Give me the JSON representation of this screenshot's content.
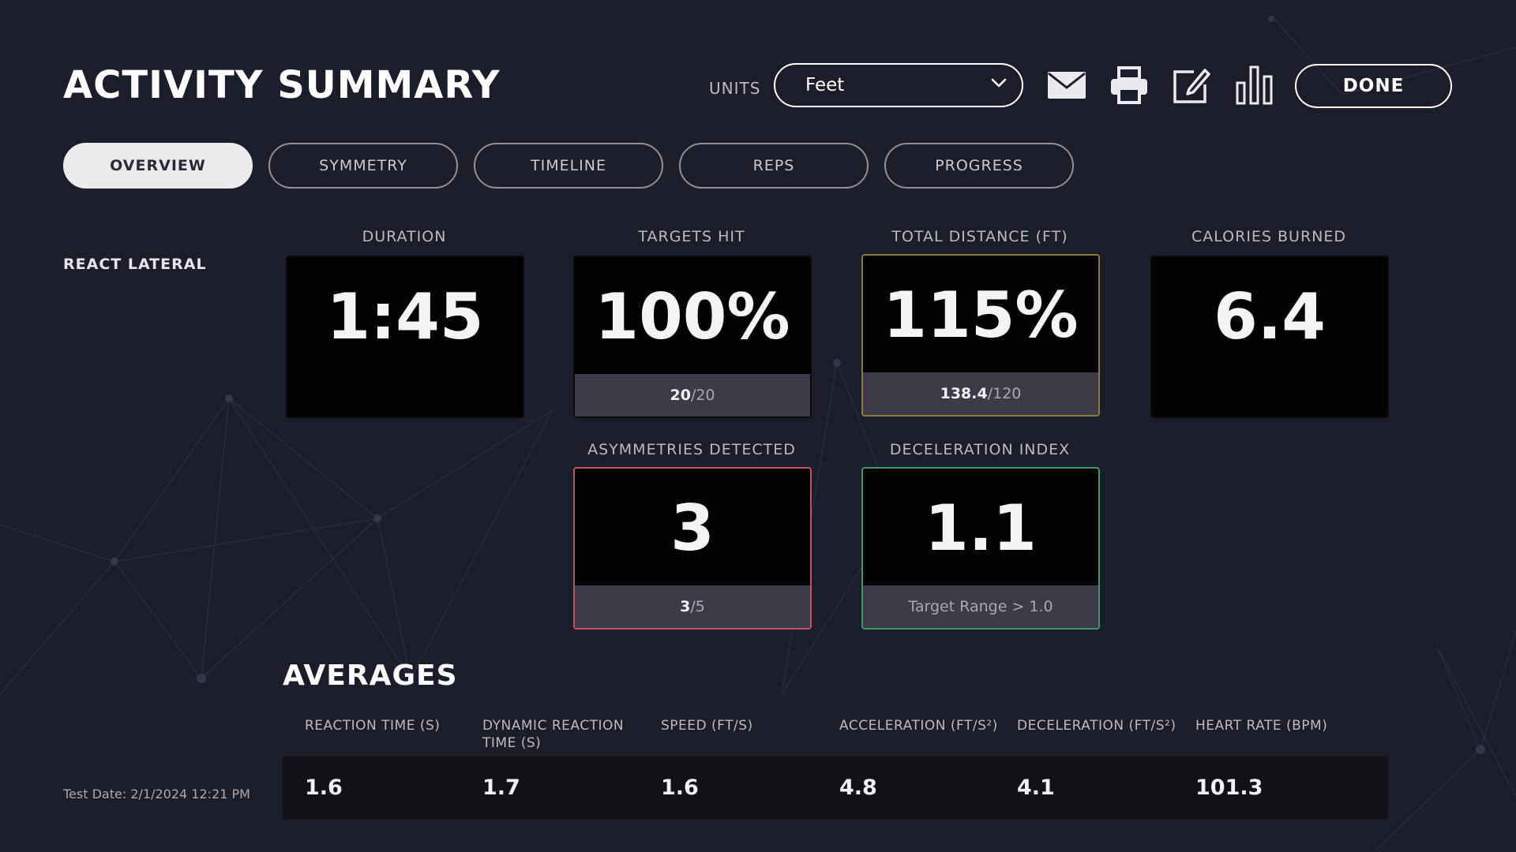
{
  "header": {
    "title": "ACTIVITY SUMMARY",
    "units_label": "UNITS",
    "units_value": "Feet",
    "done_label": "DONE",
    "icons": [
      "mail-icon",
      "printer-icon",
      "edit-icon",
      "bar-chart-icon",
      "chevron-down-icon"
    ]
  },
  "tabs": [
    {
      "label": "OVERVIEW",
      "active": true
    },
    {
      "label": "SYMMETRY",
      "active": false
    },
    {
      "label": "TIMELINE",
      "active": false
    },
    {
      "label": "REPS",
      "active": false
    },
    {
      "label": "PROGRESS",
      "active": false
    }
  ],
  "activity": {
    "name": "REACT LATERAL"
  },
  "metrics": {
    "duration": {
      "label": "DURATION",
      "value": "1:45"
    },
    "targets_hit": {
      "label": "TARGETS HIT",
      "value": "100%",
      "sub_main": "20",
      "sub_rest": "/20"
    },
    "total_distance": {
      "label": "TOTAL DISTANCE (FT)",
      "value": "115%",
      "sub_main": "138.4",
      "sub_rest": "/120",
      "border_color": "#8d7a3a"
    },
    "calories": {
      "label": "CALORIES BURNED",
      "value": "6.4"
    },
    "asymmetries": {
      "label": "ASYMMETRIES DETECTED",
      "value": "3",
      "sub_main": "3",
      "sub_rest": "/5",
      "border_color": "#c9525a"
    },
    "deceleration": {
      "label": "DECELERATION INDEX",
      "value": "1.1",
      "sub_text": "Target Range > 1.0",
      "border_color": "#3f9a60"
    }
  },
  "averages": {
    "title": "AVERAGES",
    "columns": [
      {
        "label": "REACTION TIME (S)",
        "value": "1.6"
      },
      {
        "label": "DYNAMIC REACTION TIME (S)",
        "value": "1.7"
      },
      {
        "label": "SPEED (FT/S)",
        "value": "1.6"
      },
      {
        "label": "ACCELERATION (FT/S²)",
        "value": "4.8"
      },
      {
        "label": "DECELERATION (FT/S²)",
        "value": "4.1"
      },
      {
        "label": "HEART RATE (BPM)",
        "value": "101.3"
      }
    ]
  },
  "footer": {
    "test_date": "Test Date: 2/1/2024 12:21 PM"
  }
}
